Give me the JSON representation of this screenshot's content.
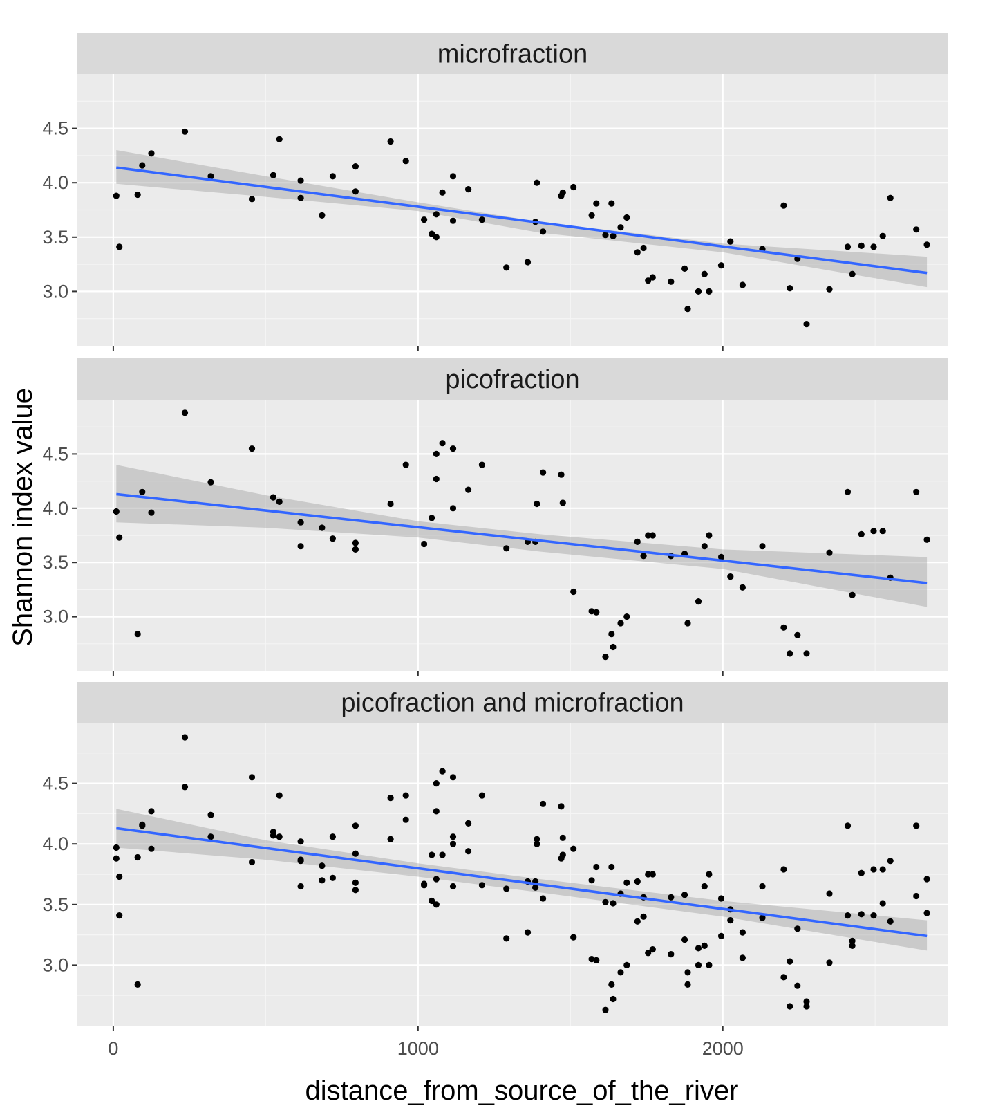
{
  "chart_data": {
    "type": "scatter",
    "xlabel": "distance_from_source_of_the_river",
    "ylabel": "Shannon index value",
    "xlim": [
      -120,
      2740
    ],
    "x_ticks": [
      0,
      1000,
      2000
    ],
    "x_tick_labels": [
      "0",
      "1000",
      "2000"
    ],
    "y_ticks": [
      3.0,
      3.5,
      4.0,
      4.5
    ],
    "y_tick_labels": [
      "3.0",
      "3.5",
      "4.0",
      "4.5"
    ],
    "grid": true,
    "trend_color": "#3366ff",
    "band_color": "#999999",
    "panel_background": "#ebebeb",
    "strip_background": "#d9d9d9",
    "point_color": "#000000",
    "panels": [
      {
        "strip": "microfraction",
        "ylim": [
          2.5,
          5.0
        ],
        "trend": {
          "x": [
            10,
            2670
          ],
          "y": [
            4.14,
            3.17
          ]
        },
        "band": {
          "x": [
            10,
            500,
            1000,
            1400,
            2000,
            2670
          ],
          "upper": [
            4.3,
            4.06,
            3.82,
            3.64,
            3.44,
            3.32
          ],
          "lower": [
            3.99,
            3.87,
            3.74,
            3.54,
            3.36,
            3.04
          ]
        },
        "points": [
          [
            10,
            3.88
          ],
          [
            20,
            3.41
          ],
          [
            80,
            3.89
          ],
          [
            95,
            4.16
          ],
          [
            125,
            4.27
          ],
          [
            235,
            4.47
          ],
          [
            320,
            4.06
          ],
          [
            455,
            3.85
          ],
          [
            525,
            4.07
          ],
          [
            545,
            4.4
          ],
          [
            615,
            4.02
          ],
          [
            615,
            3.86
          ],
          [
            685,
            3.7
          ],
          [
            720,
            4.06
          ],
          [
            795,
            4.15
          ],
          [
            795,
            3.92
          ],
          [
            910,
            4.38
          ],
          [
            960,
            4.2
          ],
          [
            1020,
            3.66
          ],
          [
            1045,
            3.53
          ],
          [
            1060,
            3.71
          ],
          [
            1060,
            3.5
          ],
          [
            1080,
            3.91
          ],
          [
            1115,
            4.06
          ],
          [
            1115,
            3.65
          ],
          [
            1165,
            3.94
          ],
          [
            1210,
            3.66
          ],
          [
            1290,
            3.22
          ],
          [
            1360,
            3.27
          ],
          [
            1385,
            3.64
          ],
          [
            1390,
            4.0
          ],
          [
            1410,
            3.55
          ],
          [
            1470,
            3.88
          ],
          [
            1475,
            3.91
          ],
          [
            1510,
            3.96
          ],
          [
            1570,
            3.7
          ],
          [
            1585,
            3.81
          ],
          [
            1615,
            3.52
          ],
          [
            1635,
            3.81
          ],
          [
            1640,
            3.51
          ],
          [
            1665,
            3.59
          ],
          [
            1685,
            3.68
          ],
          [
            1720,
            3.36
          ],
          [
            1740,
            3.4
          ],
          [
            1755,
            3.1
          ],
          [
            1770,
            3.13
          ],
          [
            1830,
            3.09
          ],
          [
            1875,
            3.21
          ],
          [
            1885,
            2.84
          ],
          [
            1920,
            3.0
          ],
          [
            1940,
            3.16
          ],
          [
            1955,
            3.0
          ],
          [
            1995,
            3.24
          ],
          [
            2025,
            3.46
          ],
          [
            2065,
            3.06
          ],
          [
            2130,
            3.39
          ],
          [
            2200,
            3.79
          ],
          [
            2220,
            3.03
          ],
          [
            2245,
            3.3
          ],
          [
            2275,
            2.7
          ],
          [
            2350,
            3.02
          ],
          [
            2410,
            3.41
          ],
          [
            2425,
            3.16
          ],
          [
            2455,
            3.42
          ],
          [
            2495,
            3.41
          ],
          [
            2525,
            3.51
          ],
          [
            2550,
            3.86
          ],
          [
            2635,
            3.57
          ],
          [
            2670,
            3.43
          ]
        ]
      },
      {
        "strip": "picofraction",
        "ylim": [
          2.5,
          5.0
        ],
        "trend": {
          "x": [
            10,
            2670
          ],
          "y": [
            4.13,
            3.31
          ]
        },
        "band": {
          "x": [
            10,
            500,
            1000,
            1400,
            2000,
            2670
          ],
          "upper": [
            4.4,
            4.12,
            3.88,
            3.76,
            3.62,
            3.55
          ],
          "lower": [
            3.87,
            3.82,
            3.73,
            3.6,
            3.44,
            3.09
          ]
        },
        "points": [
          [
            10,
            3.97
          ],
          [
            20,
            3.73
          ],
          [
            80,
            2.84
          ],
          [
            95,
            4.15
          ],
          [
            125,
            3.96
          ],
          [
            235,
            4.88
          ],
          [
            320,
            4.24
          ],
          [
            455,
            4.55
          ],
          [
            525,
            4.1
          ],
          [
            545,
            4.06
          ],
          [
            615,
            3.87
          ],
          [
            615,
            3.65
          ],
          [
            685,
            3.82
          ],
          [
            720,
            3.72
          ],
          [
            795,
            3.68
          ],
          [
            795,
            3.62
          ],
          [
            910,
            4.04
          ],
          [
            960,
            4.4
          ],
          [
            1020,
            3.67
          ],
          [
            1045,
            3.91
          ],
          [
            1060,
            4.5
          ],
          [
            1060,
            4.27
          ],
          [
            1080,
            4.6
          ],
          [
            1115,
            4.55
          ],
          [
            1115,
            4.0
          ],
          [
            1165,
            4.17
          ],
          [
            1210,
            4.4
          ],
          [
            1290,
            3.63
          ],
          [
            1360,
            3.69
          ],
          [
            1385,
            3.69
          ],
          [
            1390,
            4.04
          ],
          [
            1410,
            4.33
          ],
          [
            1470,
            4.31
          ],
          [
            1475,
            4.05
          ],
          [
            1510,
            3.23
          ],
          [
            1570,
            3.05
          ],
          [
            1585,
            3.04
          ],
          [
            1615,
            2.63
          ],
          [
            1635,
            2.84
          ],
          [
            1640,
            2.72
          ],
          [
            1665,
            2.94
          ],
          [
            1685,
            3.0
          ],
          [
            1720,
            3.69
          ],
          [
            1740,
            3.56
          ],
          [
            1755,
            3.75
          ],
          [
            1770,
            3.75
          ],
          [
            1830,
            3.56
          ],
          [
            1875,
            3.58
          ],
          [
            1885,
            2.94
          ],
          [
            1920,
            3.14
          ],
          [
            1940,
            3.65
          ],
          [
            1955,
            3.75
          ],
          [
            1995,
            3.55
          ],
          [
            2025,
            3.37
          ],
          [
            2065,
            3.27
          ],
          [
            2130,
            3.65
          ],
          [
            2200,
            2.9
          ],
          [
            2220,
            2.66
          ],
          [
            2245,
            2.83
          ],
          [
            2275,
            2.66
          ],
          [
            2350,
            3.59
          ],
          [
            2410,
            4.15
          ],
          [
            2425,
            3.2
          ],
          [
            2455,
            3.76
          ],
          [
            2495,
            3.79
          ],
          [
            2525,
            3.79
          ],
          [
            2550,
            3.36
          ],
          [
            2635,
            4.15
          ],
          [
            2670,
            3.71
          ]
        ]
      },
      {
        "strip": "picofraction and microfraction",
        "ylim": [
          2.5,
          5.0
        ],
        "trend": {
          "x": [
            10,
            2670
          ],
          "y": [
            4.13,
            3.24
          ]
        },
        "band": {
          "x": [
            10,
            500,
            1000,
            1400,
            2000,
            2670
          ],
          "upper": [
            4.29,
            4.03,
            3.84,
            3.71,
            3.53,
            3.37
          ],
          "lower": [
            3.97,
            3.87,
            3.73,
            3.6,
            3.4,
            3.12
          ]
        },
        "points": [
          [
            10,
            3.88
          ],
          [
            20,
            3.41
          ],
          [
            80,
            3.89
          ],
          [
            95,
            4.16
          ],
          [
            125,
            4.27
          ],
          [
            235,
            4.47
          ],
          [
            320,
            4.06
          ],
          [
            455,
            3.85
          ],
          [
            525,
            4.07
          ],
          [
            545,
            4.4
          ],
          [
            615,
            4.02
          ],
          [
            615,
            3.86
          ],
          [
            685,
            3.7
          ],
          [
            720,
            4.06
          ],
          [
            795,
            4.15
          ],
          [
            795,
            3.92
          ],
          [
            910,
            4.38
          ],
          [
            960,
            4.2
          ],
          [
            1020,
            3.66
          ],
          [
            1045,
            3.53
          ],
          [
            1060,
            3.71
          ],
          [
            1060,
            3.5
          ],
          [
            1080,
            3.91
          ],
          [
            1115,
            4.06
          ],
          [
            1115,
            3.65
          ],
          [
            1165,
            3.94
          ],
          [
            1210,
            3.66
          ],
          [
            1290,
            3.22
          ],
          [
            1360,
            3.27
          ],
          [
            1385,
            3.64
          ],
          [
            1390,
            4.0
          ],
          [
            1410,
            3.55
          ],
          [
            1470,
            3.88
          ],
          [
            1475,
            3.91
          ],
          [
            1510,
            3.96
          ],
          [
            1570,
            3.7
          ],
          [
            1585,
            3.81
          ],
          [
            1615,
            3.52
          ],
          [
            1635,
            3.81
          ],
          [
            1640,
            3.51
          ],
          [
            1665,
            3.59
          ],
          [
            1685,
            3.68
          ],
          [
            1720,
            3.36
          ],
          [
            1740,
            3.4
          ],
          [
            1755,
            3.1
          ],
          [
            1770,
            3.13
          ],
          [
            1830,
            3.09
          ],
          [
            1875,
            3.21
          ],
          [
            1885,
            2.84
          ],
          [
            1920,
            3.0
          ],
          [
            1940,
            3.16
          ],
          [
            1955,
            3.0
          ],
          [
            1995,
            3.24
          ],
          [
            2025,
            3.46
          ],
          [
            2065,
            3.06
          ],
          [
            2130,
            3.39
          ],
          [
            2200,
            3.79
          ],
          [
            2220,
            3.03
          ],
          [
            2245,
            3.3
          ],
          [
            2275,
            2.7
          ],
          [
            2350,
            3.02
          ],
          [
            2410,
            3.41
          ],
          [
            2425,
            3.16
          ],
          [
            2455,
            3.42
          ],
          [
            2495,
            3.41
          ],
          [
            2525,
            3.51
          ],
          [
            2550,
            3.86
          ],
          [
            2635,
            3.57
          ],
          [
            2670,
            3.43
          ],
          [
            10,
            3.97
          ],
          [
            20,
            3.73
          ],
          [
            80,
            2.84
          ],
          [
            95,
            4.15
          ],
          [
            125,
            3.96
          ],
          [
            235,
            4.88
          ],
          [
            320,
            4.24
          ],
          [
            455,
            4.55
          ],
          [
            525,
            4.1
          ],
          [
            545,
            4.06
          ],
          [
            615,
            3.87
          ],
          [
            615,
            3.65
          ],
          [
            685,
            3.82
          ],
          [
            720,
            3.72
          ],
          [
            795,
            3.68
          ],
          [
            795,
            3.62
          ],
          [
            910,
            4.04
          ],
          [
            960,
            4.4
          ],
          [
            1020,
            3.67
          ],
          [
            1045,
            3.91
          ],
          [
            1060,
            4.5
          ],
          [
            1060,
            4.27
          ],
          [
            1080,
            4.6
          ],
          [
            1115,
            4.55
          ],
          [
            1115,
            4.0
          ],
          [
            1165,
            4.17
          ],
          [
            1210,
            4.4
          ],
          [
            1290,
            3.63
          ],
          [
            1360,
            3.69
          ],
          [
            1385,
            3.69
          ],
          [
            1390,
            4.04
          ],
          [
            1410,
            4.33
          ],
          [
            1470,
            4.31
          ],
          [
            1475,
            4.05
          ],
          [
            1510,
            3.23
          ],
          [
            1570,
            3.05
          ],
          [
            1585,
            3.04
          ],
          [
            1615,
            2.63
          ],
          [
            1635,
            2.84
          ],
          [
            1640,
            2.72
          ],
          [
            1665,
            2.94
          ],
          [
            1685,
            3.0
          ],
          [
            1720,
            3.69
          ],
          [
            1740,
            3.56
          ],
          [
            1755,
            3.75
          ],
          [
            1770,
            3.75
          ],
          [
            1830,
            3.56
          ],
          [
            1875,
            3.58
          ],
          [
            1885,
            2.94
          ],
          [
            1920,
            3.14
          ],
          [
            1940,
            3.65
          ],
          [
            1955,
            3.75
          ],
          [
            1995,
            3.55
          ],
          [
            2025,
            3.37
          ],
          [
            2065,
            3.27
          ],
          [
            2130,
            3.65
          ],
          [
            2200,
            2.9
          ],
          [
            2220,
            2.66
          ],
          [
            2245,
            2.83
          ],
          [
            2275,
            2.66
          ],
          [
            2350,
            3.59
          ],
          [
            2410,
            4.15
          ],
          [
            2425,
            3.2
          ],
          [
            2455,
            3.76
          ],
          [
            2495,
            3.79
          ],
          [
            2525,
            3.79
          ],
          [
            2550,
            3.36
          ],
          [
            2635,
            4.15
          ],
          [
            2670,
            3.71
          ]
        ]
      }
    ]
  }
}
